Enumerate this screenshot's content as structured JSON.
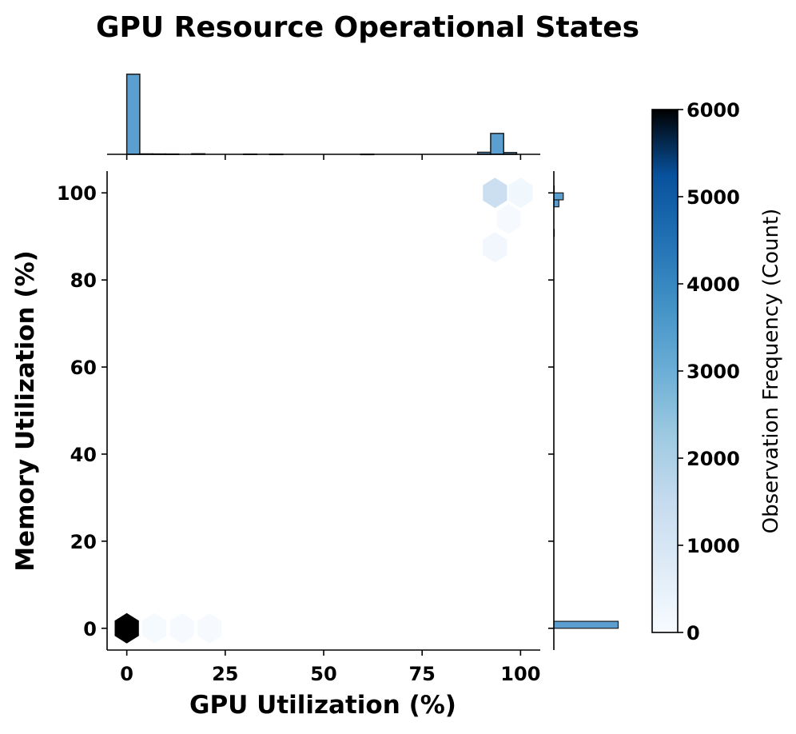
{
  "chart_data": {
    "type": "hexbin",
    "title": "GPU Resource Operational States",
    "xlabel": "GPU Utilization (%)",
    "ylabel": "Memory Utilization (%)",
    "xlim": [
      -5,
      105
    ],
    "ylim": [
      -5,
      105
    ],
    "xticks": [
      0,
      25,
      50,
      75,
      100
    ],
    "xtick_labels": [
      "0",
      "25",
      "50",
      "75",
      "100"
    ],
    "yticks": [
      0,
      20,
      40,
      60,
      80,
      100
    ],
    "ytick_labels": [
      "0",
      "20",
      "40",
      "60",
      "80",
      "100"
    ],
    "grid": false,
    "cmap": "Blues",
    "hexbins": [
      {
        "x": 0,
        "y": 0,
        "count": 6000
      },
      {
        "x": 7,
        "y": 0,
        "count": 60
      },
      {
        "x": 14,
        "y": 0,
        "count": 40
      },
      {
        "x": 21,
        "y": 0,
        "count": 25
      },
      {
        "x": 93.5,
        "y": 100,
        "count": 1300
      },
      {
        "x": 100,
        "y": 100,
        "count": 200
      },
      {
        "x": 97,
        "y": 94,
        "count": 30
      },
      {
        "x": 93.5,
        "y": 87.5,
        "count": 180
      }
    ],
    "top_histogram": {
      "bin_edges_start": 0,
      "bin_width": 3.3,
      "bars": [
        {
          "x": 0,
          "count": 5950
        },
        {
          "x": 3.3,
          "count": 30
        },
        {
          "x": 6.6,
          "count": 25
        },
        {
          "x": 9.9,
          "count": 20
        },
        {
          "x": 16.5,
          "count": 40
        },
        {
          "x": 29.7,
          "count": 15
        },
        {
          "x": 36.3,
          "count": 10
        },
        {
          "x": 59.4,
          "count": 8
        },
        {
          "x": 89.1,
          "count": 150
        },
        {
          "x": 92.4,
          "count": 1550
        },
        {
          "x": 95.7,
          "count": 130
        }
      ],
      "ymax": 6000
    },
    "right_histogram": {
      "bin_width": 1.6,
      "bars": [
        {
          "y": 0,
          "count": 6150
        },
        {
          "y": 90,
          "count": 40
        },
        {
          "y": 96.8,
          "count": 480
        },
        {
          "y": 98.4,
          "count": 900
        },
        {
          "y": 100,
          "count": 30
        }
      ],
      "xmax": 6800
    },
    "colorbar": {
      "label": "Observation Frequency (Count)",
      "min": 0,
      "max": 6000,
      "ticks": [
        0,
        1000,
        2000,
        3000,
        4000,
        5000,
        6000
      ],
      "tick_labels": [
        "0",
        "1000",
        "2000",
        "3000",
        "4000",
        "5000",
        "6000"
      ]
    },
    "colors": {
      "hist_fill": "#5b9fd0",
      "hist_edge": "#1a1a1a"
    }
  }
}
